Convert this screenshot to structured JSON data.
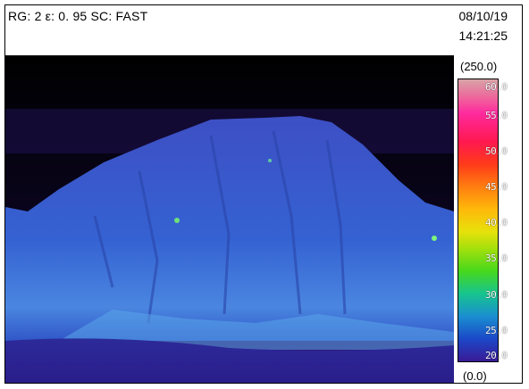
{
  "header": {
    "status_line": "RG: 2 ε: 0. 95 SC: FAST",
    "date": "08/10/19",
    "time": "14:21:25"
  },
  "scale": {
    "range_max": "(250.0)",
    "range_min": "(0.0)",
    "ticks": [
      "60.0",
      "55.0",
      "50.0",
      "45.0",
      "40.0",
      "35.0",
      "30.0",
      "25.0",
      "20.0"
    ]
  },
  "colors": {
    "sky": "#000000",
    "cold": "#2a1a8c",
    "mountain": "#3b5fcc",
    "warm_spot": "#7cf57c"
  }
}
